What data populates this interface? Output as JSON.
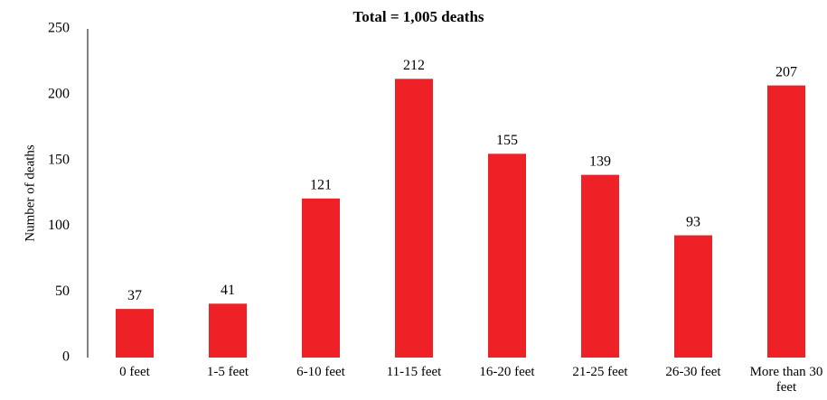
{
  "chart_data": {
    "type": "bar",
    "title": "Total = 1,005 deaths",
    "y_label": "Number of deaths",
    "categories": [
      "0 feet",
      "1-5 feet",
      "6-10 feet",
      "11-15 feet",
      "16-20 feet",
      "21-25 feet",
      "26-30 feet",
      "More than 30 feet"
    ],
    "values": [
      37,
      41,
      121,
      212,
      155,
      139,
      93,
      207
    ],
    "color": "#ee2127",
    "ylim": [
      0,
      250
    ],
    "yticks": [
      0,
      50,
      100,
      150,
      200,
      250
    ],
    "grid": false
  }
}
